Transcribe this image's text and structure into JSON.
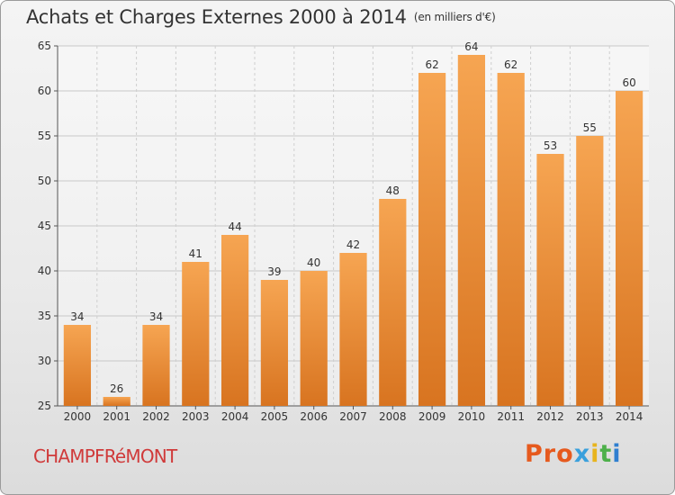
{
  "page": {
    "title": "Achats et Charges Externes 2000 à 2014",
    "unit": "(en milliers d'€)",
    "location": "CHAMPFRéMONT",
    "logo": "Proxiti",
    "logo_colors": [
      "#e65a1e",
      "#e65a1e",
      "#e65a1e",
      "#3aa0dc",
      "#e8b41e",
      "#4db04a",
      "#2f7fd0"
    ]
  },
  "chart_data": {
    "type": "bar",
    "title": "Achats et Charges Externes 2000 à 2014",
    "subtitle": "(en milliers d'€)",
    "xlabel": "",
    "ylabel": "",
    "categories": [
      "2000",
      "2001",
      "2002",
      "2003",
      "2004",
      "2005",
      "2006",
      "2007",
      "2008",
      "2009",
      "2010",
      "2011",
      "2012",
      "2013",
      "2014"
    ],
    "values": [
      34,
      26,
      34,
      41,
      44,
      39,
      40,
      42,
      48,
      62,
      64,
      62,
      53,
      55,
      60
    ],
    "ylim": [
      25,
      65
    ],
    "yticks": [
      25,
      30,
      35,
      40,
      45,
      50,
      55,
      60,
      65
    ],
    "grid": true,
    "bar_color_top": "#f6a552",
    "bar_color_bottom": "#d87420"
  }
}
